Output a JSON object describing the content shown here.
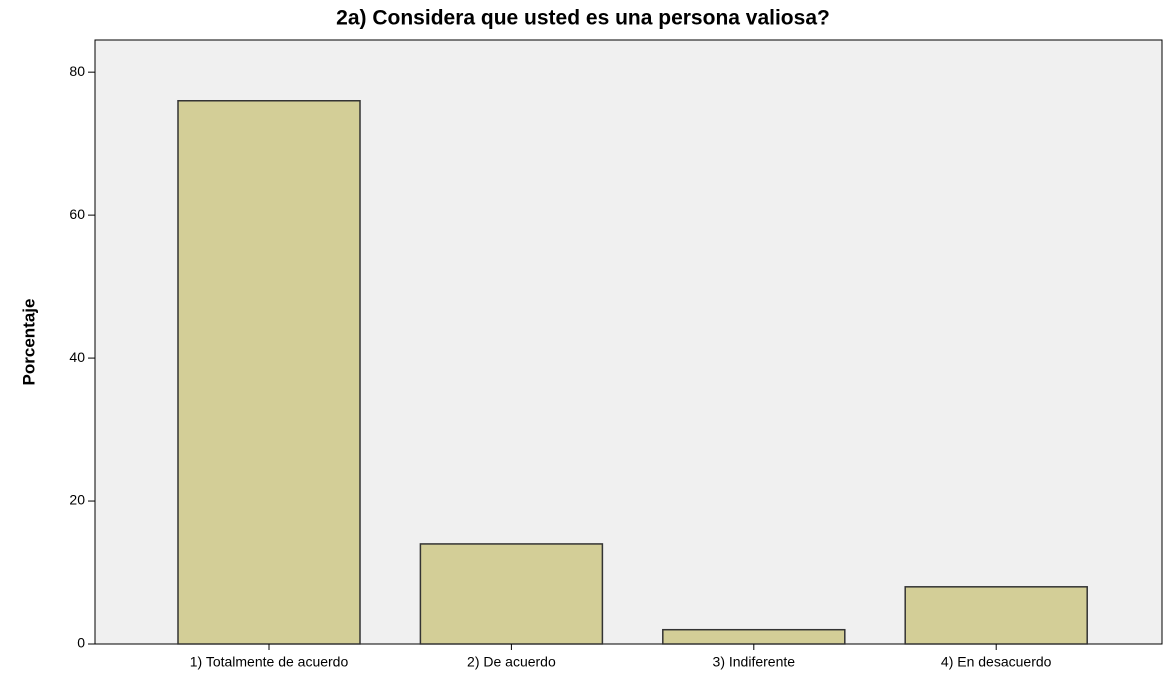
{
  "chart_data": {
    "type": "bar",
    "title": "2a) Considera que usted es una persona valiosa?",
    "y_label": "Porcentaje",
    "categories": [
      "1) Totalmente de acuerdo",
      "2) De acuerdo",
      "3) Indiferente",
      "4)  En desacuerdo"
    ],
    "values": [
      76,
      14,
      2,
      8
    ],
    "color": "#d3ce97",
    "ylim": [
      0,
      84.5
    ],
    "yticks": [
      0,
      20,
      40,
      60,
      80
    ],
    "grid": false
  }
}
